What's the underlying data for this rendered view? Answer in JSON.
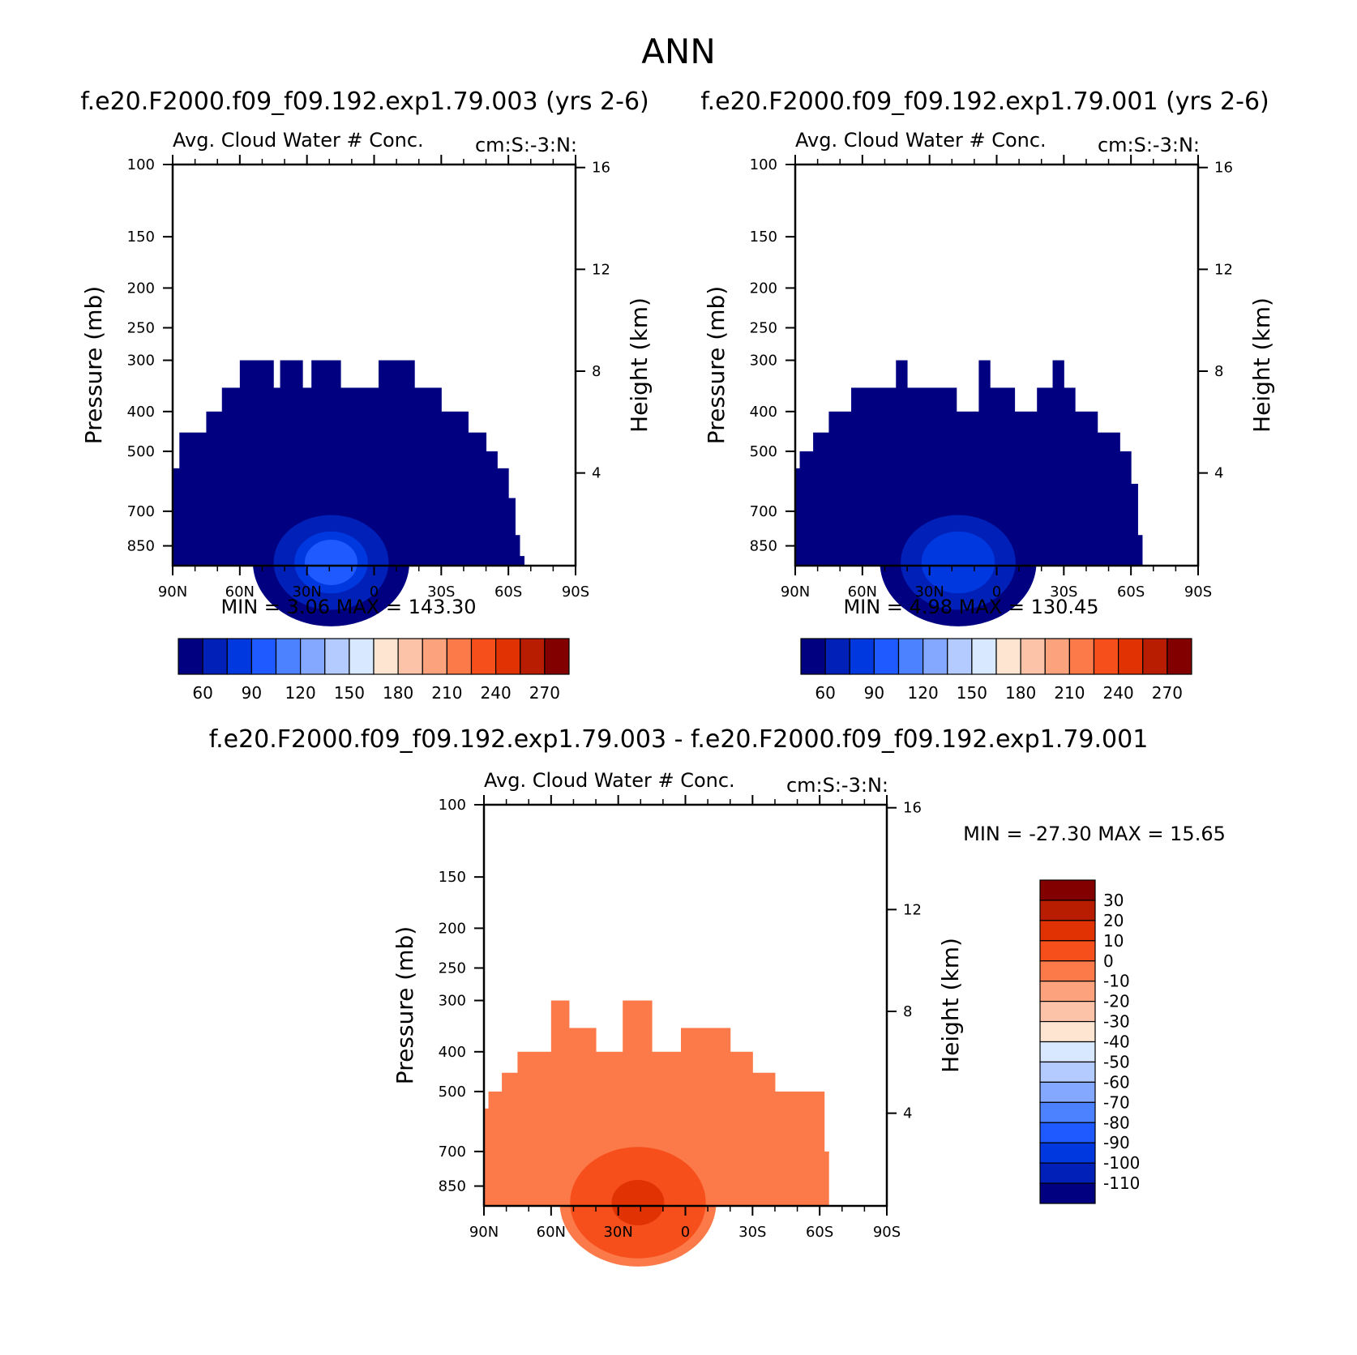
{
  "page": {
    "title": "ANN",
    "case_a": "f.e20.F2000.f09_f09.192.exp1.79.003 (yrs 2-6)",
    "case_b": "f.e20.F2000.f09_f09.192.exp1.79.001 (yrs 2-6)",
    "diff_title": "f.e20.F2000.f09_f09.192.exp1.79.003 - f.e20.F2000.f09_f09.192.exp1.79.001"
  },
  "chart_data": [
    {
      "type": "heatmap",
      "left_title": "Avg. Cloud Water # Conc.",
      "right_title": "cm:S:-3:N:",
      "ylabel": "Pressure (mb)",
      "ylabel_right": "Height (km)",
      "x_ticks": [
        "90N",
        "60N",
        "30N",
        "0",
        "30S",
        "60S",
        "90S"
      ],
      "x_range": [
        90,
        -90
      ],
      "y_ticks": [
        100,
        150,
        200,
        250,
        300,
        400,
        500,
        700,
        850
      ],
      "y_range": [
        100,
        950
      ],
      "y_scale": "log",
      "right_ticks": [
        16,
        12,
        8,
        4
      ],
      "min_label": "MIN =",
      "min_value": "3.06",
      "max_label": "MAX =",
      "max_value": "143.30",
      "levels": [
        60,
        90,
        120,
        150,
        180,
        210,
        240,
        270
      ],
      "colors": [
        "#000080",
        "#0020b8",
        "#0038e0",
        "#1e5aff",
        "#4c82ff",
        "#84a8ff",
        "#b4cbff",
        "#d7e8ff",
        "#fde5d2",
        "#fcc3a8",
        "#fca37e",
        "#fc7a49",
        "#f74f1c",
        "#e03202",
        "#b81d01",
        "#820000"
      ],
      "field_profile": [
        [
          90,
          550
        ],
        [
          87,
          450
        ],
        [
          82,
          450
        ],
        [
          75,
          400
        ],
        [
          68,
          350
        ],
        [
          60,
          300
        ],
        [
          48,
          300
        ],
        [
          45,
          350
        ],
        [
          42,
          300
        ],
        [
          38,
          300
        ],
        [
          32,
          350
        ],
        [
          28,
          300
        ],
        [
          20,
          300
        ],
        [
          15,
          350
        ],
        [
          -2,
          300
        ],
        [
          -10,
          300
        ],
        [
          -18,
          350
        ],
        [
          -30,
          400
        ],
        [
          -42,
          450
        ],
        [
          -50,
          500
        ],
        [
          -55,
          550
        ],
        [
          -60,
          650
        ],
        [
          -63,
          800
        ],
        [
          -65,
          900
        ],
        [
          -67,
          950
        ]
      ],
      "field_peak": {
        "lat": 30,
        "p": 870,
        "value": 143.3
      },
      "background_value": 8
    },
    {
      "type": "heatmap",
      "left_title": "Avg. Cloud Water # Conc.",
      "right_title": "cm:S:-3:N:",
      "ylabel": "Pressure (mb)",
      "ylabel_right": "Height (km)",
      "x_ticks": [
        "90N",
        "60N",
        "30N",
        "0",
        "30S",
        "60S",
        "90S"
      ],
      "x_range": [
        90,
        -90
      ],
      "y_ticks": [
        100,
        150,
        200,
        250,
        300,
        400,
        500,
        700,
        850
      ],
      "y_range": [
        100,
        950
      ],
      "y_scale": "log",
      "right_ticks": [
        16,
        12,
        8,
        4
      ],
      "min_label": "MIN =",
      "min_value": "4.98",
      "max_label": "MAX =",
      "max_value": "130.45",
      "levels": [
        60,
        90,
        120,
        150,
        180,
        210,
        240,
        270
      ],
      "colors": [
        "#000080",
        "#0020b8",
        "#0038e0",
        "#1e5aff",
        "#4c82ff",
        "#84a8ff",
        "#b4cbff",
        "#d7e8ff",
        "#fde5d2",
        "#fcc3a8",
        "#fca37e",
        "#fc7a49",
        "#f74f1c",
        "#e03202",
        "#b81d01",
        "#820000"
      ],
      "field_profile": [
        [
          90,
          550
        ],
        [
          88,
          500
        ],
        [
          82,
          450
        ],
        [
          75,
          400
        ],
        [
          65,
          350
        ],
        [
          50,
          350
        ],
        [
          45,
          300
        ],
        [
          40,
          350
        ],
        [
          20,
          350
        ],
        [
          18,
          400
        ],
        [
          10,
          400
        ],
        [
          8,
          300
        ],
        [
          3,
          350
        ],
        [
          -5,
          350
        ],
        [
          -8,
          400
        ],
        [
          -18,
          350
        ],
        [
          -25,
          300
        ],
        [
          -30,
          350
        ],
        [
          -35,
          400
        ],
        [
          -45,
          450
        ],
        [
          -55,
          500
        ],
        [
          -60,
          600
        ],
        [
          -63,
          800
        ],
        [
          -65,
          950
        ]
      ],
      "field_peak": {
        "lat": 28,
        "p": 860,
        "value": 130.45
      },
      "background_value": 8
    },
    {
      "type": "heatmap",
      "left_title": "Avg. Cloud Water # Conc.",
      "right_title": "cm:S:-3:N:",
      "ylabel": "Pressure (mb)",
      "ylabel_right": "Height (km)",
      "x_ticks": [
        "90N",
        "60N",
        "30N",
        "0",
        "30S",
        "60S",
        "90S"
      ],
      "x_range": [
        90,
        -90
      ],
      "y_ticks": [
        100,
        150,
        200,
        250,
        300,
        400,
        500,
        700,
        850
      ],
      "y_range": [
        100,
        950
      ],
      "y_scale": "log",
      "right_ticks": [
        16,
        12,
        8,
        4
      ],
      "min_label": "MIN =",
      "min_value": "-27.30",
      "max_label": "MAX =",
      "max_value": "15.65",
      "levels": [
        -110,
        -100,
        -90,
        -80,
        -70,
        -60,
        -50,
        -40,
        -30,
        -20,
        -10,
        0,
        10,
        20,
        30
      ],
      "colors": [
        "#000080",
        "#0020b8",
        "#0038e0",
        "#1e5aff",
        "#4c82ff",
        "#84a8ff",
        "#b4cbff",
        "#d7e8ff",
        "#fde5d2",
        "#fcc3a8",
        "#fca37e",
        "#fc7a49",
        "#f74f1c",
        "#e03202",
        "#b81d01",
        "#820000"
      ],
      "field_profile": [
        [
          90,
          550
        ],
        [
          88,
          500
        ],
        [
          82,
          450
        ],
        [
          75,
          400
        ],
        [
          60,
          300
        ],
        [
          52,
          350
        ],
        [
          40,
          400
        ],
        [
          30,
          400
        ],
        [
          28,
          300
        ],
        [
          18,
          300
        ],
        [
          15,
          400
        ],
        [
          8,
          400
        ],
        [
          2,
          350
        ],
        [
          -10,
          350
        ],
        [
          -20,
          400
        ],
        [
          -30,
          450
        ],
        [
          -40,
          500
        ],
        [
          -55,
          500
        ],
        [
          -62,
          700
        ],
        [
          -64,
          950
        ]
      ],
      "field_peak": {
        "lat": 32,
        "p": 880,
        "value": 15.65
      },
      "background_value": -5
    }
  ]
}
